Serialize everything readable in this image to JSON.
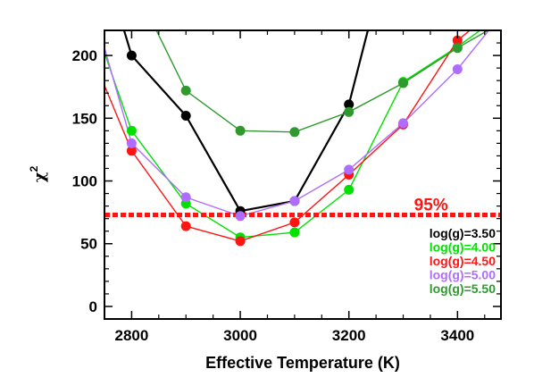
{
  "chart_data": {
    "type": "line",
    "xlabel": "Effective Temperature (K)",
    "ylabel": "χ2",
    "ylabel_base": "χ",
    "ylabel_sup": "2",
    "xlim": [
      2750,
      3480
    ],
    "ylim": [
      -10,
      220
    ],
    "xticks": [
      2800,
      3000,
      3200,
      3400
    ],
    "yticks": [
      0,
      50,
      100,
      150,
      200
    ],
    "grid": false,
    "legend_position": "bottom-right",
    "threshold": {
      "label": "95%",
      "value": 73,
      "color": "#ff1414"
    },
    "series": [
      {
        "name": "log(g)=3.50",
        "color": "#000000",
        "points": [
          [
            2800,
            200
          ],
          [
            2900,
            152
          ],
          [
            3000,
            76
          ],
          [
            3100,
            84
          ],
          [
            3200,
            161
          ]
        ],
        "curve": [
          [
            2750,
            272
          ],
          [
            2800,
            200
          ],
          [
            2900,
            152
          ],
          [
            3000,
            76
          ],
          [
            3100,
            84
          ],
          [
            3200,
            161
          ],
          [
            3300,
            330
          ]
        ]
      },
      {
        "name": "log(g)=4.00",
        "color": "#00e100",
        "points": [
          [
            2800,
            140
          ],
          [
            2900,
            82
          ],
          [
            3000,
            55
          ],
          [
            3100,
            59
          ],
          [
            3200,
            93
          ],
          [
            3300,
            179
          ],
          [
            3400,
            207
          ]
        ],
        "curve": [
          [
            2750,
            202
          ],
          [
            2800,
            140
          ],
          [
            2900,
            82
          ],
          [
            3000,
            55
          ],
          [
            3100,
            59
          ],
          [
            3200,
            93
          ],
          [
            3300,
            179
          ],
          [
            3400,
            207
          ],
          [
            3480,
            232
          ]
        ]
      },
      {
        "name": "log(g)=4.50",
        "color": "#ff1414",
        "points": [
          [
            2800,
            124
          ],
          [
            2900,
            64
          ],
          [
            3000,
            52
          ],
          [
            3100,
            67
          ],
          [
            3200,
            105
          ],
          [
            3300,
            145
          ],
          [
            3400,
            212
          ]
        ],
        "curve": [
          [
            2750,
            176
          ],
          [
            2800,
            124
          ],
          [
            2900,
            64
          ],
          [
            3000,
            52
          ],
          [
            3100,
            67
          ],
          [
            3200,
            105
          ],
          [
            3300,
            145
          ],
          [
            3400,
            212
          ],
          [
            3480,
            240
          ]
        ]
      },
      {
        "name": "log(g)=5.00",
        "color": "#b06cff",
        "points": [
          [
            2800,
            130
          ],
          [
            2900,
            87
          ],
          [
            3000,
            72
          ],
          [
            3100,
            84
          ],
          [
            3200,
            109
          ],
          [
            3300,
            146
          ],
          [
            3400,
            189
          ]
        ],
        "curve": [
          [
            2750,
            206
          ],
          [
            2800,
            130
          ],
          [
            2900,
            87
          ],
          [
            3000,
            72
          ],
          [
            3100,
            84
          ],
          [
            3200,
            109
          ],
          [
            3300,
            146
          ],
          [
            3400,
            189
          ],
          [
            3480,
            232
          ]
        ]
      },
      {
        "name": "log(g)=5.50",
        "color": "#2e9a2e",
        "points": [
          [
            2900,
            172
          ],
          [
            3000,
            140
          ],
          [
            3100,
            139
          ],
          [
            3200,
            155
          ],
          [
            3300,
            178
          ],
          [
            3400,
            206
          ]
        ],
        "curve": [
          [
            2840,
            225
          ],
          [
            2900,
            172
          ],
          [
            3000,
            140
          ],
          [
            3100,
            139
          ],
          [
            3200,
            155
          ],
          [
            3300,
            178
          ],
          [
            3400,
            206
          ],
          [
            3480,
            226
          ]
        ]
      }
    ]
  }
}
